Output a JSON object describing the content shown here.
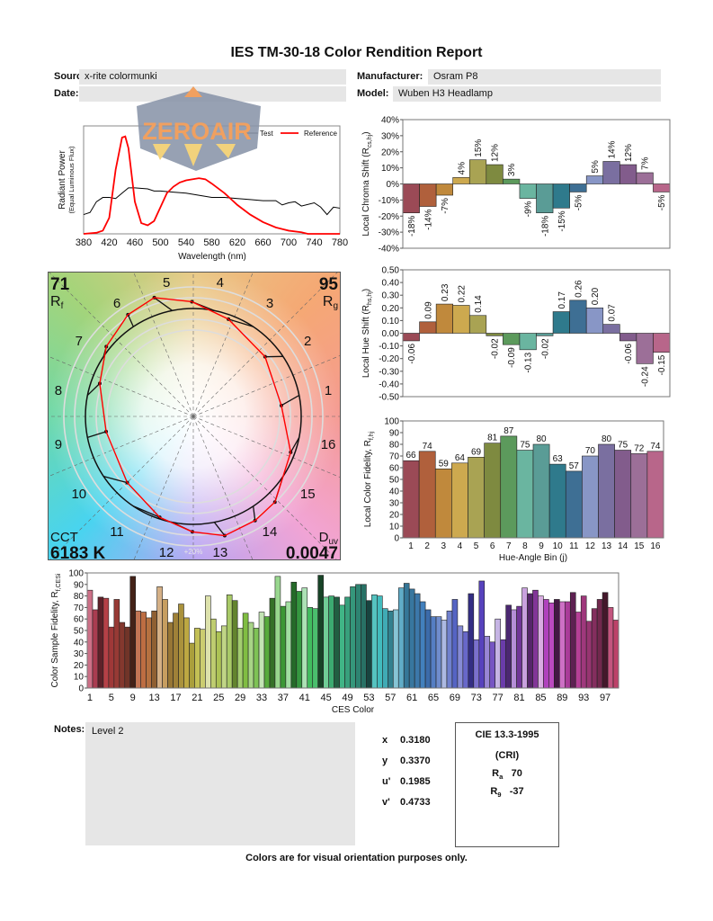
{
  "title": "IES TM-30-18 Color Rendition Report",
  "header": {
    "source_label": "Source:",
    "source": "x-rite colormunki",
    "manufacturer_label": "Manufacturer:",
    "manufacturer": "Osram P8",
    "date_label": "Date:",
    "date": "",
    "model_label": "Model:",
    "model": "Wuben H3 Headlamp"
  },
  "watermark": {
    "text": "ZEROAIR",
    "color": "#f0a060"
  },
  "vector_graphic": {
    "rf": "71",
    "rf_label": "R",
    "rf_sub": "f",
    "rg": "95",
    "rg_label": "R",
    "rg_sub": "g",
    "cct_label": "CCT",
    "cct": "6183 K",
    "duv_label": "D",
    "duv_sub": "uv",
    "duv": "0.0047",
    "ring_label": "+20%",
    "bin_labels": [
      "1",
      "2",
      "3",
      "4",
      "5",
      "6",
      "7",
      "8",
      "9",
      "10",
      "11",
      "12",
      "13",
      "14",
      "15",
      "16"
    ],
    "test_color": "#ff0000",
    "reference_color": "#000000"
  },
  "chart_data": [
    {
      "type": "line",
      "xlabel": "Wavelength (nm)",
      "ylabel": "Radiant Power",
      "ylabel2": "(Equal Luminous Flux)",
      "xlim": [
        380,
        780
      ],
      "ylim": [
        0,
        1
      ],
      "xticks": [
        "380",
        "420",
        "460",
        "500",
        "540",
        "580",
        "620",
        "660",
        "700",
        "740",
        "780"
      ],
      "legend": {
        "position": "top-right",
        "entries": [
          "Test",
          "Reference"
        ]
      },
      "series": [
        {
          "name": "Test",
          "color": "#000000",
          "x": [
            380,
            390,
            400,
            410,
            420,
            430,
            440,
            450,
            460,
            480,
            490,
            500,
            520,
            540,
            560,
            580,
            600,
            620,
            640,
            660,
            680,
            690,
            700,
            710,
            720,
            740,
            750,
            760,
            770,
            780
          ],
          "y": [
            0.18,
            0.2,
            0.3,
            0.34,
            0.34,
            0.33,
            0.38,
            0.43,
            0.43,
            0.42,
            0.4,
            0.4,
            0.39,
            0.38,
            0.36,
            0.34,
            0.34,
            0.33,
            0.32,
            0.31,
            0.31,
            0.27,
            0.29,
            0.3,
            0.26,
            0.29,
            0.25,
            0.18,
            0.25,
            0.24
          ]
        },
        {
          "name": "Reference",
          "color": "#ff0000",
          "x": [
            380,
            400,
            410,
            420,
            430,
            440,
            445,
            450,
            460,
            470,
            480,
            490,
            500,
            510,
            520,
            530,
            540,
            560,
            570,
            580,
            600,
            620,
            640,
            660,
            680,
            700,
            720,
            730,
            780
          ],
          "y": [
            0,
            0.01,
            0.03,
            0.15,
            0.6,
            0.9,
            0.91,
            0.8,
            0.3,
            0.1,
            0.08,
            0.12,
            0.25,
            0.38,
            0.44,
            0.48,
            0.5,
            0.52,
            0.51,
            0.47,
            0.38,
            0.27,
            0.18,
            0.11,
            0.06,
            0.03,
            0.015,
            0,
            0
          ]
        }
      ]
    },
    {
      "type": "bar",
      "ylabel": "Local Chroma Shift (R",
      "ylabel_sub": "cs,hj",
      "ylabel_end": ")",
      "ylim": [
        -40,
        40
      ],
      "yticks": [
        "-40%",
        "-30%",
        "-20%",
        "-10%",
        "0%",
        "10%",
        "20%",
        "30%",
        "40%"
      ],
      "categories": [
        "1",
        "2",
        "3",
        "4",
        "5",
        "6",
        "7",
        "8",
        "9",
        "10",
        "11",
        "12",
        "13",
        "14",
        "15",
        "16"
      ],
      "values": [
        -18,
        -14,
        -7,
        4,
        15,
        12,
        3,
        -9,
        -18,
        -15,
        -5,
        5,
        14,
        12,
        7,
        -5
      ],
      "data_labels": [
        "-18%",
        "-14%",
        "-7%",
        "4%",
        "15%",
        "12%",
        "3%",
        "-9%",
        "-18%",
        "-15%",
        "-5%",
        "5%",
        "14%",
        "12%",
        "7%",
        "-5%"
      ]
    },
    {
      "type": "bar",
      "ylabel": "Local Hue Shift (R",
      "ylabel_sub": "hs,hj",
      "ylabel_end": ")",
      "ylim": [
        -0.5,
        0.5
      ],
      "yticks": [
        "-0.50",
        "-0.40",
        "-0.30",
        "-0.20",
        "-0.10",
        "0.00",
        "0.10",
        "0.20",
        "0.30",
        "0.40",
        "0.50"
      ],
      "categories": [
        "1",
        "2",
        "3",
        "4",
        "5",
        "6",
        "7",
        "8",
        "9",
        "10",
        "11",
        "12",
        "13",
        "14",
        "15",
        "16"
      ],
      "values": [
        -0.06,
        0.09,
        0.23,
        0.22,
        0.14,
        -0.02,
        -0.09,
        -0.13,
        -0.02,
        0.17,
        0.26,
        0.2,
        0.07,
        -0.06,
        -0.24,
        -0.15
      ],
      "data_labels": [
        "-0.06",
        "0.09",
        "0.23",
        "0.22",
        "0.14",
        "-0.02",
        "-0.09",
        "-0.13",
        "-0.02",
        "0.17",
        "0.26",
        "0.20",
        "0.07",
        "-0.06",
        "-0.24",
        "-0.15"
      ]
    },
    {
      "type": "bar",
      "ylabel": "Local Color Fidelity, R",
      "ylabel_sub": "f,hj",
      "xlabel": "Hue-Angle Bin (j)",
      "ylim": [
        0,
        100
      ],
      "yticks": [
        "0",
        "10",
        "20",
        "30",
        "40",
        "50",
        "60",
        "70",
        "80",
        "90",
        "100"
      ],
      "categories": [
        "1",
        "2",
        "3",
        "4",
        "5",
        "6",
        "7",
        "8",
        "9",
        "10",
        "11",
        "12",
        "13",
        "14",
        "15",
        "16"
      ],
      "values": [
        66,
        74,
        59,
        64,
        69,
        81,
        87,
        75,
        80,
        63,
        57,
        70,
        80,
        75,
        72,
        74
      ],
      "data_labels": [
        "66",
        "74",
        "59",
        "64",
        "69",
        "81",
        "87",
        "75",
        "80",
        "63",
        "57",
        "70",
        "80",
        "75",
        "72",
        "74"
      ]
    },
    {
      "type": "bar",
      "ylabel": "Color Sample Fidelity, R",
      "ylabel_sub": "f,CESi",
      "xlabel": "CES Color",
      "ylim": [
        0,
        100
      ],
      "yticks": [
        "0",
        "10",
        "20",
        "30",
        "40",
        "50",
        "60",
        "70",
        "80",
        "90",
        "100"
      ],
      "xticks": [
        "1",
        "5",
        "9",
        "13",
        "17",
        "21",
        "25",
        "29",
        "33",
        "37",
        "41",
        "45",
        "49",
        "53",
        "57",
        "61",
        "65",
        "69",
        "73",
        "77",
        "81",
        "85",
        "89",
        "93",
        "97"
      ],
      "values": [
        85,
        68,
        79,
        78,
        53,
        77,
        57,
        53,
        97,
        67,
        66,
        61,
        67,
        88,
        77,
        57,
        65,
        73,
        61,
        39,
        52,
        51,
        80,
        60,
        49,
        54,
        81,
        76,
        52,
        65,
        57,
        52,
        66,
        62,
        78,
        97,
        71,
        75,
        92,
        84,
        87,
        70,
        69,
        98,
        79,
        80,
        79,
        72,
        79,
        88,
        90,
        90,
        76,
        81,
        80,
        69,
        67,
        68,
        87,
        91,
        86,
        82,
        75,
        68,
        62,
        62,
        59,
        67,
        77,
        54,
        49,
        82,
        42,
        93,
        45,
        40,
        60,
        42,
        72,
        68,
        71,
        87,
        82,
        85,
        80,
        77,
        74,
        77,
        75,
        75,
        83,
        66,
        80,
        58,
        69,
        77,
        83,
        70,
        59
      ]
    }
  ],
  "bin_colors": [
    "#9b4a56",
    "#b0603c",
    "#c0893c",
    "#cda94f",
    "#a9a353",
    "#7e8a40",
    "#5c9a5c",
    "#6ab5a0",
    "#5a9c96",
    "#2f7a8c",
    "#3e6f94",
    "#8896c6",
    "#7a6fa0",
    "#825c8c",
    "#9c6f98",
    "#b8668a"
  ],
  "notes": {
    "label": "Notes:",
    "text": "Level 2"
  },
  "chromaticity": [
    {
      "label": "x",
      "value": "0.3180"
    },
    {
      "label": "y",
      "value": "0.3370"
    },
    {
      "label": "u'",
      "value": "0.1985"
    },
    {
      "label": "v'",
      "value": "0.4733"
    }
  ],
  "cri": {
    "title": "CIE 13.3-1995",
    "subtitle": "(CRI)",
    "ra_label": "R",
    "ra_sub": "a",
    "ra": "70",
    "r9_label": "R",
    "r9_sub": "9",
    "r9": "-37"
  },
  "footer": "Colors are for visual orientation purposes only."
}
